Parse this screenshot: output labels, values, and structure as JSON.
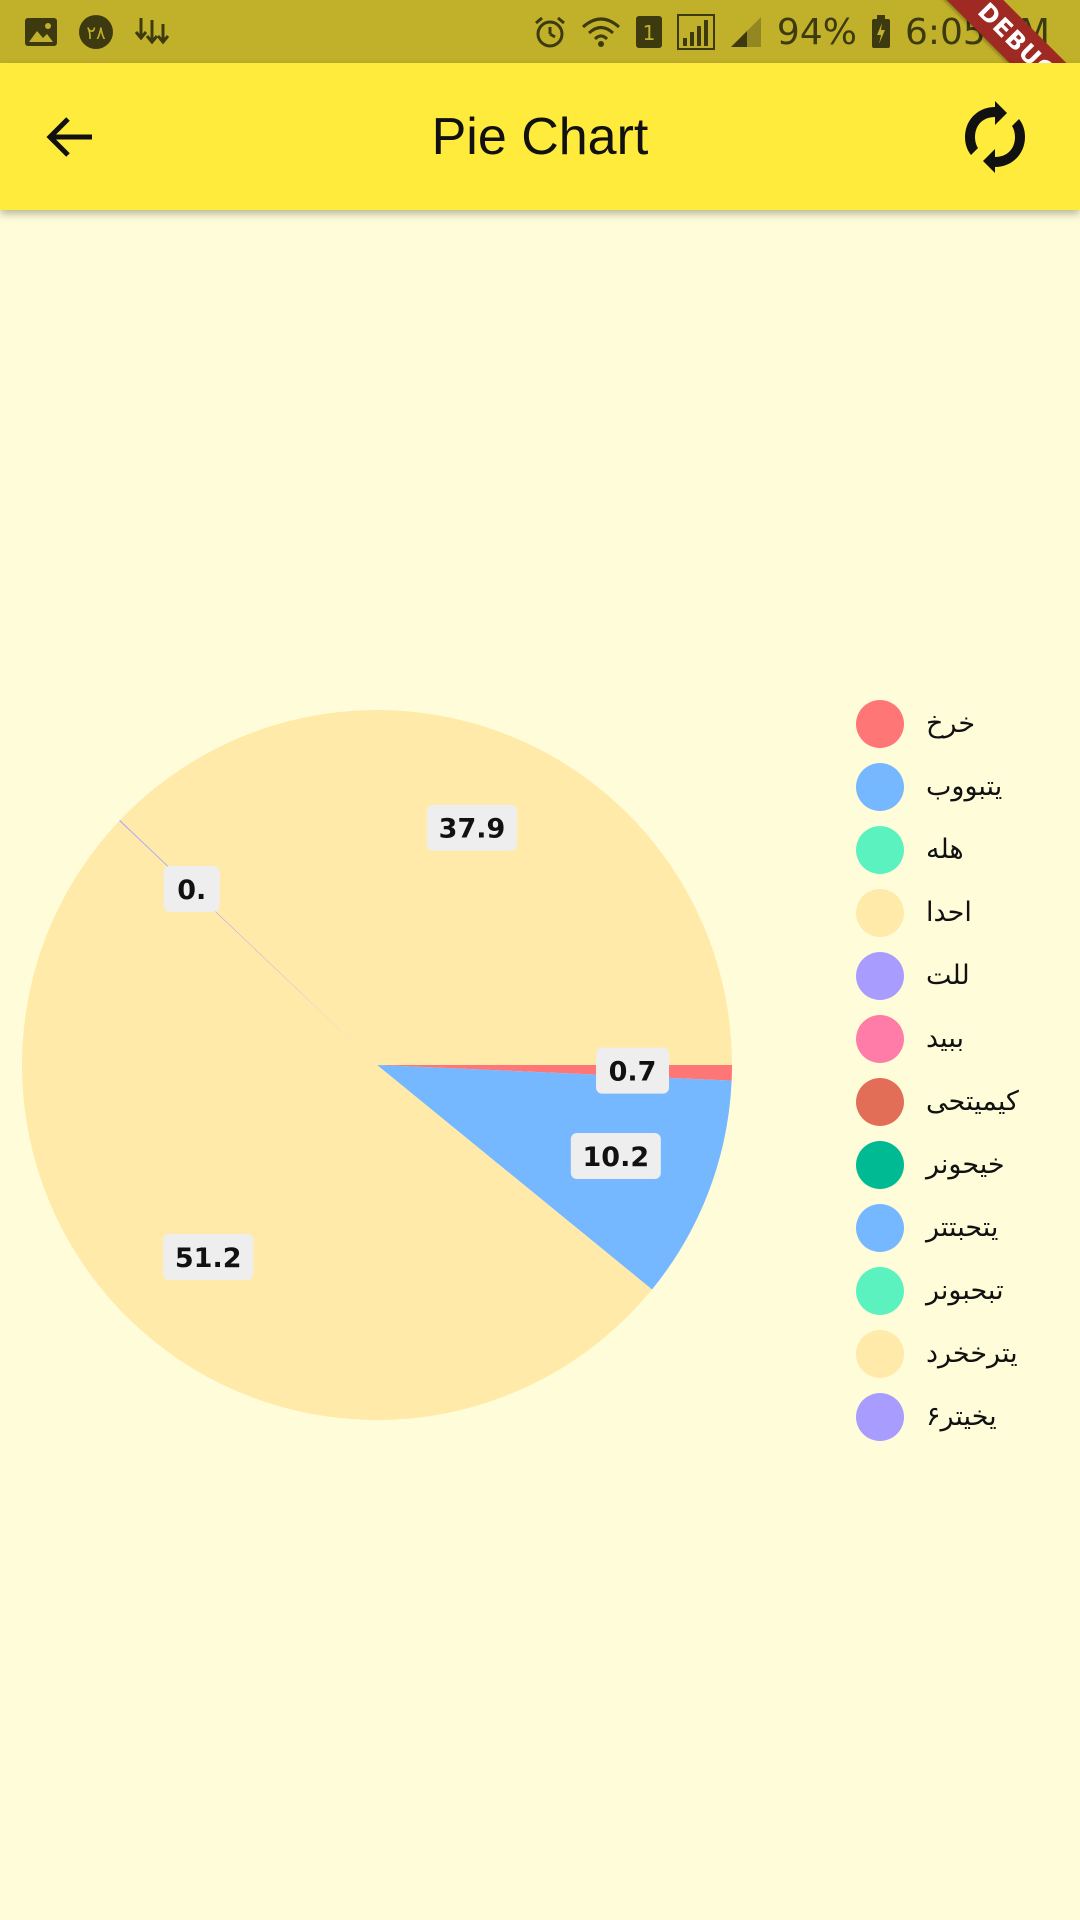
{
  "status_bar": {
    "left_icons": [
      "image-icon",
      "notification-badge-icon",
      "download-icon"
    ],
    "badge_text": "٢٨",
    "sim_badge": "1",
    "battery_percent": "94%",
    "time": "6:05 PM",
    "debug_label": "DEBUG"
  },
  "app_bar": {
    "title": "Pie Chart",
    "back_icon": "arrow-back-icon",
    "action_icon": "refresh-icon",
    "background": "#FFEB3B"
  },
  "chart_data": {
    "type": "pie",
    "slices": [
      {
        "label": "خرخ",
        "value": 0.7,
        "shown_label": "0.7",
        "color": "#FF7676"
      },
      {
        "label": "یتبووب",
        "value": 10.2,
        "shown_label": "10.2",
        "color": "#76B8FF"
      },
      {
        "label": "احدا",
        "value": 51.2,
        "shown_label": "51.2",
        "color": "#FFEAAA"
      },
      {
        "label": "للت",
        "value": 0.05,
        "shown_label": "0.",
        "color": "#A89CFF"
      },
      {
        "label": "یترخخرد",
        "value": 37.9,
        "shown_label": "37.9",
        "color": "#FFEAAA"
      }
    ],
    "legend": [
      {
        "label": "خرخ",
        "color": "#FF7676"
      },
      {
        "label": "یتبووب",
        "color": "#76B8FF"
      },
      {
        "label": "هله",
        "color": "#5CF2C0"
      },
      {
        "label": "احدا",
        "color": "#FFEAAA"
      },
      {
        "label": "للت",
        "color": "#A89CFF"
      },
      {
        "label": "ببید",
        "color": "#FF7CA8"
      },
      {
        "label": "کیمیتحی",
        "color": "#E36E58"
      },
      {
        "label": "خیحونر",
        "color": "#00BA94"
      },
      {
        "label": "یتحبتتر",
        "color": "#76B8FF"
      },
      {
        "label": "تبحبونر",
        "color": "#5CF2C0"
      },
      {
        "label": "یترخخرد",
        "color": "#FFEAAA"
      },
      {
        "label": "یخیتر۶",
        "color": "#A89CFF"
      }
    ],
    "legend_position": "right"
  }
}
